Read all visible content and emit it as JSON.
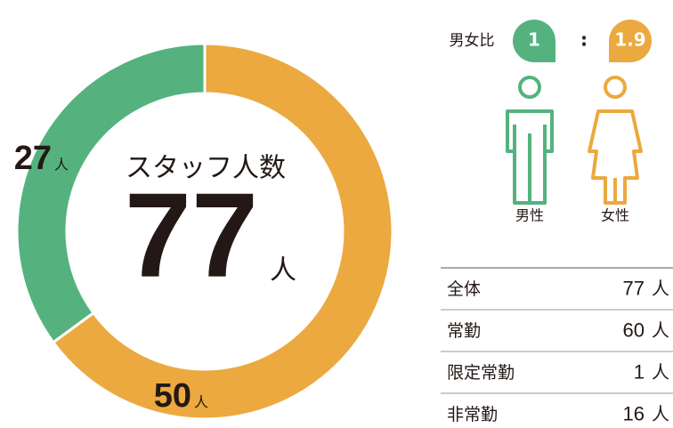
{
  "chart_data": {
    "type": "donut",
    "title": "スタッフ人数",
    "total": 77,
    "unit": "人",
    "values": [
      50,
      27
    ],
    "colors": [
      "#eba93f",
      "#55b27e"
    ]
  },
  "ratio": {
    "label": "男女比",
    "male": 1,
    "separator": ":",
    "female": 1.9,
    "male_label": "男性",
    "female_label": "女性",
    "male_color": "#55b27e",
    "female_color": "#eba93f"
  },
  "table": {
    "rows": [
      {
        "label": "全体",
        "value": 77,
        "unit": "人"
      },
      {
        "label": "常勤",
        "value": 60,
        "unit": "人"
      },
      {
        "label": "限定常勤",
        "value": 1,
        "unit": "人"
      },
      {
        "label": "非常勤",
        "value": 16,
        "unit": "人"
      }
    ]
  }
}
